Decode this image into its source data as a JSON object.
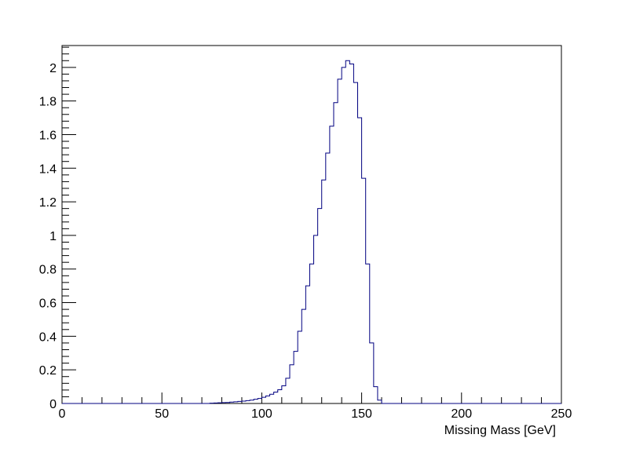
{
  "chart_data": {
    "type": "histogram-step",
    "title": "",
    "xlabel": "Missing Mass [GeV]",
    "ylabel": "",
    "xlim": [
      0,
      250
    ],
    "ylim": [
      0,
      2.13
    ],
    "x_ticks": [
      0,
      50,
      100,
      150,
      200,
      250
    ],
    "x_tick_labels": [
      "0",
      "50",
      "100",
      "150",
      "200",
      "250"
    ],
    "y_ticks": [
      0,
      0.2,
      0.4,
      0.6,
      0.8,
      1,
      1.2,
      1.4,
      1.6,
      1.8,
      2
    ],
    "y_tick_labels": [
      "0",
      "0.2",
      "0.4",
      "0.6",
      "0.8",
      "1",
      "1.2",
      "1.4",
      "1.6",
      "1.8",
      "2"
    ],
    "grid": false,
    "line_color": "#000080",
    "bin_width": 2,
    "series": [
      {
        "bins_start": 74,
        "values": [
          0.002,
          0.003,
          0.004,
          0.005,
          0.006,
          0.008,
          0.01,
          0.012,
          0.014,
          0.017,
          0.02,
          0.025,
          0.03,
          0.037,
          0.045,
          0.055,
          0.068,
          0.082,
          0.105,
          0.15,
          0.23,
          0.31,
          0.43,
          0.56,
          0.7,
          0.83,
          1.0,
          1.16,
          1.33,
          1.49,
          1.65,
          1.79,
          1.93,
          2.0,
          2.04,
          2.02,
          1.91,
          1.7,
          1.34,
          0.83,
          0.36,
          0.1,
          0.02
        ]
      }
    ]
  }
}
